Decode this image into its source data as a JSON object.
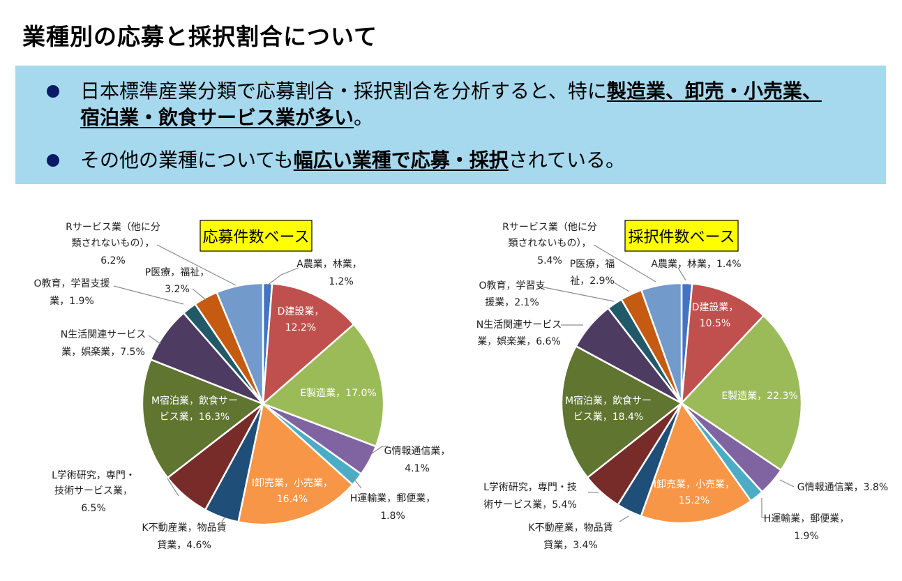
{
  "title": "業種別の応募と採択割合について",
  "summary": {
    "bullet1": {
      "pre": "日本標準産業分類で応募割合・採択割合を分析すると、特に",
      "emph_line1": "製造業、卸売・小売業、",
      "emph_line2": "宿泊業・飲食サービス業が多い",
      "post": "。"
    },
    "bullet2": {
      "pre": "その他の業種についても",
      "emph": "幅広い業種で応募・採択",
      "post": "されている。"
    }
  },
  "colors": {
    "A": "#4472c4",
    "D": "#c0504d",
    "E": "#9bbb59",
    "G": "#8064a2",
    "H": "#4bacc6",
    "I": "#f79646",
    "K": "#1f4e79",
    "L": "#772c2a",
    "M": "#5f7530",
    "N": "#4e3b62",
    "O": "#215968",
    "P": "#c55a11",
    "R": "#729aca",
    "box_bg": "#a6d8ee",
    "bullet_dot": "#0b1a66",
    "base_label_bg": "#ffff00"
  },
  "chart_data": [
    {
      "type": "pie",
      "title": "応募件数ベース",
      "slices": [
        {
          "key": "A",
          "label": "A農業，林業，1.2%",
          "lines": [
            "A農業，林業，",
            "1.2%"
          ],
          "value": 1.2
        },
        {
          "key": "D",
          "label": "D建設業，12.2%",
          "lines": [
            "D建設業，",
            "12.2%"
          ],
          "value": 12.2
        },
        {
          "key": "E",
          "label": "E製造業，17.0%",
          "lines": [
            "E製造業，17.0%"
          ],
          "value": 17.0
        },
        {
          "key": "G",
          "label": "G情報通信業，4.1%",
          "lines": [
            "G情報通信業，",
            "4.1%"
          ],
          "value": 4.1
        },
        {
          "key": "H",
          "label": "H運輸業，郵便業，1.8%",
          "lines": [
            "H運輸業，郵便業，",
            "1.8%"
          ],
          "value": 1.8
        },
        {
          "key": "I",
          "label": "I卸売業，小売業，16.4%",
          "lines": [
            "I卸売業，小売業，",
            "16.4%"
          ],
          "value": 16.4
        },
        {
          "key": "K",
          "label": "K不動産業，物品賃貸業，4.6%",
          "lines": [
            "K不動産業，物品賃",
            "貸業，4.6%"
          ],
          "value": 4.6
        },
        {
          "key": "L",
          "label": "L学術研究，専門・技術サービス業，6.5%",
          "lines": [
            "L学術研究，専門・",
            "技術サービス業，",
            "6.5%"
          ],
          "value": 6.5
        },
        {
          "key": "M",
          "label": "M宿泊業，飲食サービス業，16.3%",
          "lines": [
            "M宿泊業，飲食サー",
            "ビス業，16.3%"
          ],
          "value": 16.3
        },
        {
          "key": "N",
          "label": "N生活関連サービス業，娯楽業，7.5%",
          "lines": [
            "N生活関連サービス",
            "業，娯楽業，7.5%"
          ],
          "value": 7.5
        },
        {
          "key": "O",
          "label": "O教育，学習支援業，1.9%",
          "lines": [
            "O教育，学習支援",
            "業，1.9%"
          ],
          "value": 1.9
        },
        {
          "key": "P",
          "label": "P医療，福祉，3.2%",
          "lines": [
            "P医療，福祉，",
            "3.2%"
          ],
          "value": 3.2
        },
        {
          "key": "R",
          "label": "Rサービス業（他に分類されないもの），6.2%",
          "lines": [
            "Rサービス業（他に分",
            "類されないもの），",
            "6.2%"
          ],
          "value": 6.2
        }
      ]
    },
    {
      "type": "pie",
      "title": "採択件数ベース",
      "slices": [
        {
          "key": "A",
          "label": "A農業，林業，1.4%",
          "lines": [
            "A農業，林業，1.4%"
          ],
          "value": 1.4
        },
        {
          "key": "D",
          "label": "D建設業，10.5%",
          "lines": [
            "D建設業，",
            "10.5%"
          ],
          "value": 10.5
        },
        {
          "key": "E",
          "label": "E製造業，22.3%",
          "lines": [
            "E製造業，22.3%"
          ],
          "value": 22.3
        },
        {
          "key": "G",
          "label": "G情報通信業，3.8%",
          "lines": [
            "G情報通信業，3.8%"
          ],
          "value": 3.8
        },
        {
          "key": "H",
          "label": "H運輸業，郵便業，1.9%",
          "lines": [
            "H運輸業，郵便業，",
            "1.9%"
          ],
          "value": 1.9
        },
        {
          "key": "I",
          "label": "I卸売業，小売業，15.2%",
          "lines": [
            "I卸売業，小売業，",
            "15.2%"
          ],
          "value": 15.2
        },
        {
          "key": "K",
          "label": "K不動産業，物品賃貸業，3.4%",
          "lines": [
            "K不動産業，物品賃",
            "貸業，3.4%"
          ],
          "value": 3.4
        },
        {
          "key": "L",
          "label": "L学術研究，専門・技術サービス業，5.4%",
          "lines": [
            "L学術研究，専門・技",
            "術サービス業，5.4%"
          ],
          "value": 5.4
        },
        {
          "key": "M",
          "label": "M宿泊業，飲食サービス業，18.4%",
          "lines": [
            "M宿泊業，飲食サー",
            "ビス業，18.4%"
          ],
          "value": 18.4
        },
        {
          "key": "N",
          "label": "N生活関連サービス業，娯楽業，6.6%",
          "lines": [
            "N生活関連サービス",
            "業，娯楽業，6.6%"
          ],
          "value": 6.6
        },
        {
          "key": "O",
          "label": "O教育，学習支援業，2.1%",
          "lines": [
            "O教育，学習支",
            "援業，2.1%"
          ],
          "value": 2.1
        },
        {
          "key": "P",
          "label": "P医療，福祉，2.9%",
          "lines": [
            "P医療，福",
            "祉，2.9%"
          ],
          "value": 2.9
        },
        {
          "key": "R",
          "label": "Rサービス業（他に分類されないもの），5.4%",
          "lines": [
            "Rサービス業（他に分",
            "類されないもの），",
            "5.4%"
          ],
          "value": 5.4
        }
      ]
    }
  ]
}
